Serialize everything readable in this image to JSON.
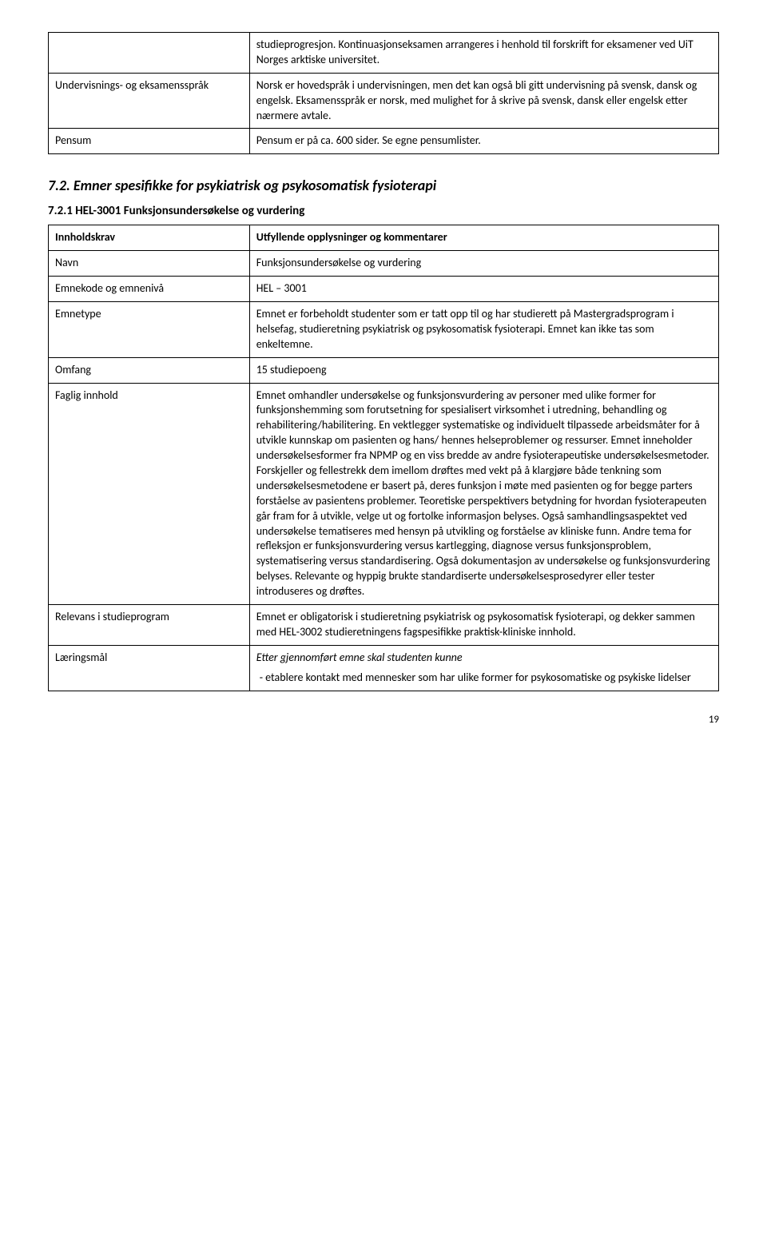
{
  "table1": {
    "rows": [
      {
        "left": "",
        "right": "studieprogresjon. Kontinuasjonseksamen arrangeres i henhold til forskrift for eksamener ved UiT Norges arktiske universitet."
      },
      {
        "left": "Undervisnings- og eksamensspråk",
        "right": "Norsk er hovedspråk i undervisningen, men det kan også bli gitt undervisning på svensk, dansk og engelsk. Eksamensspråk er norsk, med mulighet for å skrive på svensk, dansk eller engelsk etter nærmere avtale."
      },
      {
        "left": "Pensum",
        "right": "Pensum er på ca. 600 sider. Se egne pensumlister."
      }
    ]
  },
  "section": {
    "heading": "7.2. Emner spesifikke for psykiatrisk og psykosomatisk fysioterapi",
    "subheading": "7.2.1 HEL-3001 Funksjonsundersøkelse og vurdering"
  },
  "table2": {
    "rows": [
      {
        "left": "Innholdskrav",
        "left_bold": true,
        "right": "Utfyllende opplysninger og kommentarer",
        "right_bold": true
      },
      {
        "left": "Navn",
        "right": "Funksjonsundersøkelse og vurdering"
      },
      {
        "left": "Emnekode og emnenivå",
        "right": "HEL – 3001"
      },
      {
        "left": "Emnetype",
        "right": "Emnet er forbeholdt studenter som er tatt opp til og har studierett på Mastergradsprogram i helsefag, studieretning psykiatrisk og psykosomatisk fysioterapi. Emnet kan ikke tas som enkeltemne."
      },
      {
        "left": "Omfang",
        "right": "15 studiepoeng"
      },
      {
        "left": "Faglig innhold",
        "right": "Emnet omhandler undersøkelse og funksjonsvurdering av personer med ulike former for funksjonshemming som forutsetning for spesialisert virksomhet i utredning, behandling og rehabilitering/habilitering. En vektlegger systematiske og individuelt tilpassede arbeidsmåter for å utvikle kunnskap om pasienten og hans/ hennes helseproblemer og ressurser. Emnet inneholder undersøkelsesformer fra NPMP og en viss bredde av andre fysioterapeutiske undersøkelsesmetoder. Forskjeller og fellestrekk dem imellom drøftes med vekt på å klargjøre både tenkning som undersøkelsesmetodene er basert på, deres funksjon i møte med pasienten og for begge parters forståelse av pasientens problemer. Teoretiske perspektivers betydning for hvordan fysioterapeuten går fram for å utvikle, velge ut og fortolke informasjon belyses. Også samhandlingsaspektet ved undersøkelse tematiseres med hensyn på utvikling og forståelse av kliniske funn. Andre tema for refleksjon er funksjonsvurdering versus kartlegging, diagnose versus funksjonsproblem, systematisering versus standardisering. Også dokumentasjon av undersøkelse og funksjonsvurdering belyses. Relevante og hyppig brukte standardiserte undersøkelsesprosedyrer eller tester introduseres og drøftes."
      },
      {
        "left": "Relevans i studieprogram",
        "right": "Emnet er obligatorisk i studieretning psykiatrisk og psykosomatisk fysioterapi, og dekker sammen med HEL-3002 studieretningens fagspesifikke praktisk-kliniske innhold."
      },
      {
        "left": "Læringsmål",
        "right_italic_lead": "Etter gjennomført emne skal studenten kunne",
        "right_bullets": [
          "etablere kontakt med mennesker som har ulike former for psykosomatiske og psykiske lidelser"
        ]
      }
    ]
  },
  "page_number": "19"
}
